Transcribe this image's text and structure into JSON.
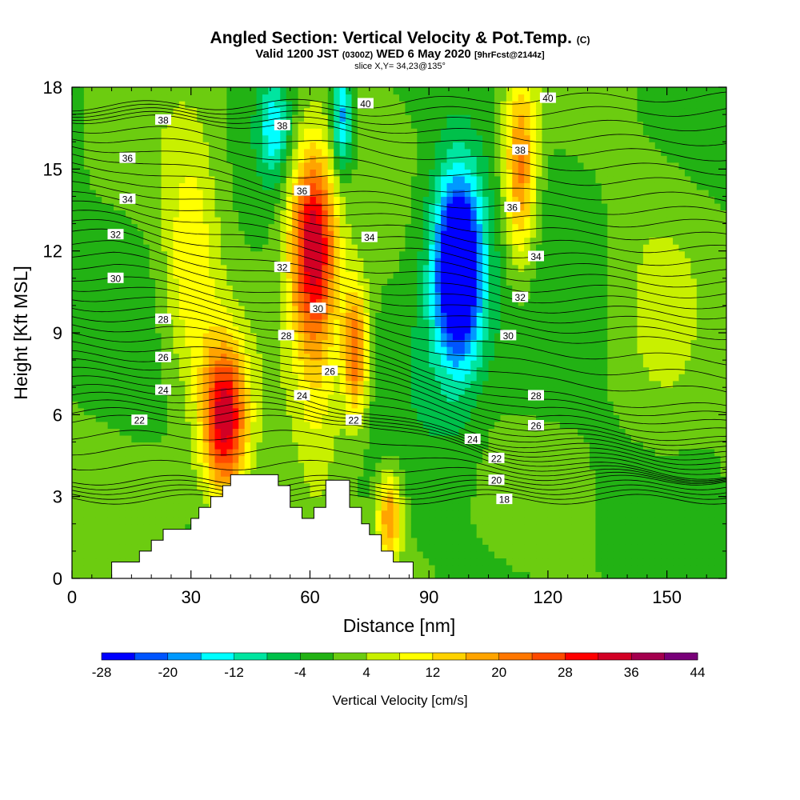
{
  "header": {
    "title_main": "Angled Section: Vertical Velocity & Pot.Temp.",
    "title_units": "(C)",
    "valid_prefix": "Valid 1200 JST",
    "valid_utc": "(0300Z)",
    "valid_date": "WED 6 May 2020",
    "forecast_info": "[9hrFcst@2144z]",
    "slice_info": "slice X,Y= 34,23@135°"
  },
  "chart_data": {
    "type": "heatmap",
    "xlabel": "Distance [nm]",
    "ylabel": "Height [Kft MSL]",
    "xlim": [
      0,
      165
    ],
    "ylim": [
      0,
      18
    ],
    "x_ticks": [
      0,
      30,
      60,
      90,
      120,
      150
    ],
    "y_ticks": [
      0,
      3,
      6,
      9,
      12,
      15,
      18
    ],
    "colorbar": {
      "label": "Vertical Velocity [cm/s]",
      "min": -28,
      "max": 44,
      "step": 4,
      "tick_labels": [
        -28,
        -20,
        -12,
        -4,
        4,
        12,
        20,
        28,
        36,
        44
      ],
      "colors": [
        "#0000ff",
        "#0055ff",
        "#0099ff",
        "#00ffff",
        "#00e5a0",
        "#00c04a",
        "#22b214",
        "#6ccc10",
        "#c8f000",
        "#ffff00",
        "#ffd200",
        "#ffa400",
        "#ff7700",
        "#ff4a00",
        "#ff0000",
        "#d20024",
        "#a4004e",
        "#780078"
      ]
    },
    "terrain_kft": [
      [
        0,
        0
      ],
      [
        10,
        0
      ],
      [
        10,
        0.6
      ],
      [
        17,
        0.6
      ],
      [
        17,
        1.0
      ],
      [
        20,
        1.0
      ],
      [
        20,
        1.4
      ],
      [
        23,
        1.4
      ],
      [
        23,
        1.8
      ],
      [
        30,
        1.8
      ],
      [
        30,
        2.2
      ],
      [
        32,
        2.2
      ],
      [
        32,
        2.6
      ],
      [
        35,
        2.6
      ],
      [
        35,
        3.0
      ],
      [
        38,
        3.0
      ],
      [
        38,
        3.4
      ],
      [
        40,
        3.4
      ],
      [
        40,
        3.8
      ],
      [
        52,
        3.8
      ],
      [
        52,
        3.4
      ],
      [
        55,
        3.4
      ],
      [
        55,
        2.6
      ],
      [
        58,
        2.6
      ],
      [
        58,
        2.2
      ],
      [
        61,
        2.2
      ],
      [
        61,
        2.6
      ],
      [
        64,
        2.6
      ],
      [
        64,
        3.6
      ],
      [
        70,
        3.6
      ],
      [
        70,
        2.6
      ],
      [
        73,
        2.6
      ],
      [
        73,
        2.0
      ],
      [
        75,
        2.0
      ],
      [
        75,
        1.6
      ],
      [
        78,
        1.6
      ],
      [
        78,
        1.0
      ],
      [
        81,
        1.0
      ],
      [
        81,
        0.6
      ],
      [
        86,
        0.6
      ],
      [
        86,
        0
      ],
      [
        165,
        0
      ]
    ],
    "vertical_velocity_features": [
      {
        "x": 38.5,
        "y": 5.8,
        "sx": 5.5,
        "sy": 2.8,
        "v": 34
      },
      {
        "x": 30,
        "y": 11,
        "sx": 7,
        "sy": 5,
        "v": 12
      },
      {
        "x": 60.5,
        "y": 12.5,
        "sx": 6,
        "sy": 3.5,
        "v": 30
      },
      {
        "x": 71.5,
        "y": 8.3,
        "sx": 3.2,
        "sy": 2.5,
        "v": 24
      },
      {
        "x": 62,
        "y": 9,
        "sx": 6,
        "sy": 6,
        "v": 10
      },
      {
        "x": 80,
        "y": 2.3,
        "sx": 3,
        "sy": 1.6,
        "v": 20
      },
      {
        "x": 113,
        "y": 15,
        "sx": 4,
        "sy": 3.5,
        "v": 22
      },
      {
        "x": 97.5,
        "y": 11.5,
        "sx": 5.5,
        "sy": 3.2,
        "v": -34
      },
      {
        "x": 96,
        "y": 11,
        "sx": 10,
        "sy": 5,
        "v": -10
      },
      {
        "x": 51,
        "y": 16.5,
        "sx": 4,
        "sy": 1.8,
        "v": -14
      },
      {
        "x": 68,
        "y": 16.8,
        "sx": 2.5,
        "sy": 2,
        "v": -18
      },
      {
        "x": 28,
        "y": 7,
        "sx": 6,
        "sy": 3,
        "v": -2
      },
      {
        "x": 118,
        "y": 7.5,
        "sx": 12,
        "sy": 2.5,
        "v": -3
      },
      {
        "x": 148,
        "y": 9,
        "sx": 10,
        "sy": 5,
        "v": 4
      }
    ],
    "potential_temperature_c": {
      "contours": [
        18,
        20,
        22,
        24,
        26,
        28,
        30,
        32,
        34,
        36,
        38,
        40
      ],
      "labels": [
        {
          "value": "38",
          "x": 23,
          "y": 16.8
        },
        {
          "value": "36",
          "x": 14,
          "y": 15.4
        },
        {
          "value": "34",
          "x": 14,
          "y": 13.9
        },
        {
          "value": "32",
          "x": 11,
          "y": 12.6
        },
        {
          "value": "30",
          "x": 11,
          "y": 11.0
        },
        {
          "value": "28",
          "x": 23,
          "y": 9.5
        },
        {
          "value": "26",
          "x": 23,
          "y": 8.1
        },
        {
          "value": "24",
          "x": 23,
          "y": 6.9
        },
        {
          "value": "22",
          "x": 17,
          "y": 5.8
        },
        {
          "value": "40",
          "x": 74,
          "y": 17.4
        },
        {
          "value": "40",
          "x": 120,
          "y": 17.6
        },
        {
          "value": "38",
          "x": 53,
          "y": 16.6
        },
        {
          "value": "38",
          "x": 113,
          "y": 15.7
        },
        {
          "value": "36",
          "x": 58,
          "y": 14.2
        },
        {
          "value": "36",
          "x": 111,
          "y": 13.6
        },
        {
          "value": "34",
          "x": 75,
          "y": 12.5
        },
        {
          "value": "34",
          "x": 117,
          "y": 11.8
        },
        {
          "value": "32",
          "x": 53,
          "y": 11.4
        },
        {
          "value": "32",
          "x": 113,
          "y": 10.3
        },
        {
          "value": "30",
          "x": 62,
          "y": 9.9
        },
        {
          "value": "30",
          "x": 110,
          "y": 8.9
        },
        {
          "value": "28",
          "x": 54,
          "y": 8.9
        },
        {
          "value": "28",
          "x": 117,
          "y": 6.7
        },
        {
          "value": "26",
          "x": 65,
          "y": 7.6
        },
        {
          "value": "26",
          "x": 117,
          "y": 5.6
        },
        {
          "value": "24",
          "x": 58,
          "y": 6.7
        },
        {
          "value": "24",
          "x": 101,
          "y": 5.1
        },
        {
          "value": "22",
          "x": 71,
          "y": 5.8
        },
        {
          "value": "22",
          "x": 107,
          "y": 4.4
        },
        {
          "value": "20",
          "x": 107,
          "y": 3.6
        },
        {
          "value": "18",
          "x": 109,
          "y": 2.9
        }
      ]
    }
  }
}
